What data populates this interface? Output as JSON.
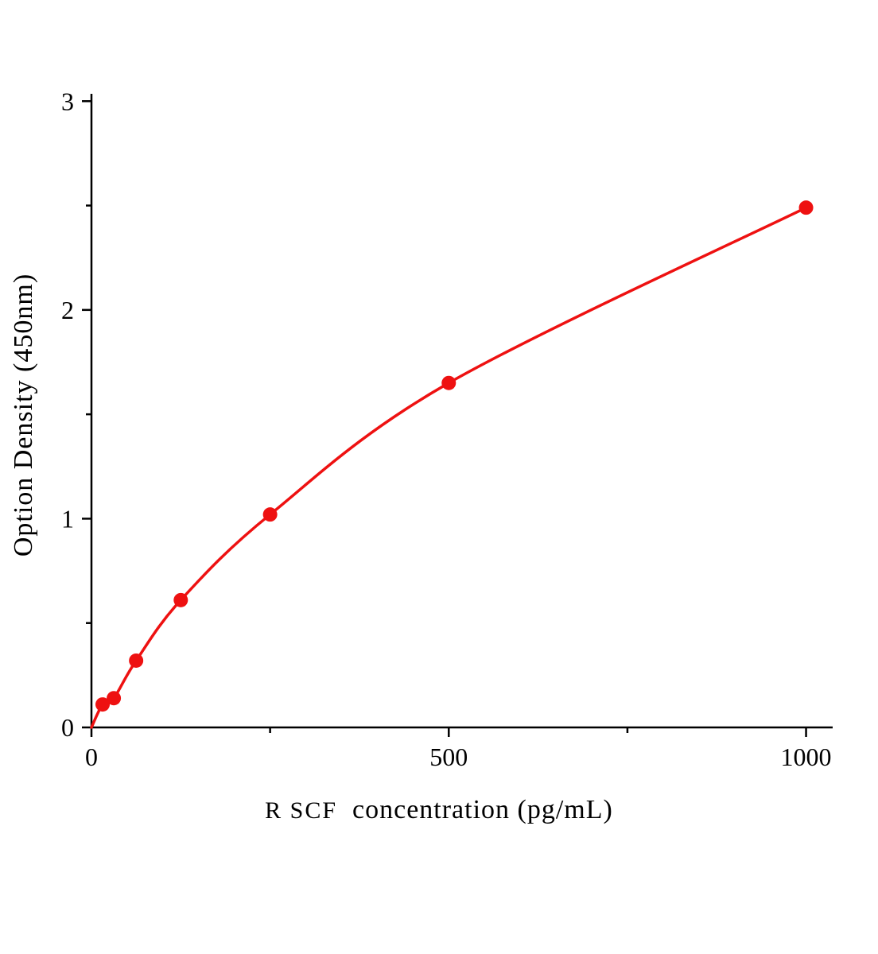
{
  "chart_data": {
    "type": "scatter",
    "subtype": "standard-curve-with-smooth-line",
    "title": "",
    "xlabel_prefix": "R SCF",
    "xlabel_rest": "  concentration (pg/mL)",
    "ylabel": "Option Density (450nm)",
    "x": [
      0,
      15.6,
      31.25,
      62.5,
      125,
      250,
      500,
      1000
    ],
    "y": [
      0,
      0.11,
      0.14,
      0.32,
      0.61,
      1.02,
      1.65,
      2.49
    ],
    "xlim": [
      0,
      1035
    ],
    "ylim": [
      0,
      3.02
    ],
    "x_major_ticks": [
      0,
      500,
      1000
    ],
    "x_minor_ticks": [
      250,
      750
    ],
    "y_major_ticks": [
      0,
      1,
      2,
      3
    ],
    "y_minor_ticks": [
      0.5,
      1.5,
      2.5
    ],
    "grid": "off",
    "legend": "none",
    "line_color": "#ee1111",
    "marker_color": "#ee1111",
    "axis_color": "#000000"
  }
}
